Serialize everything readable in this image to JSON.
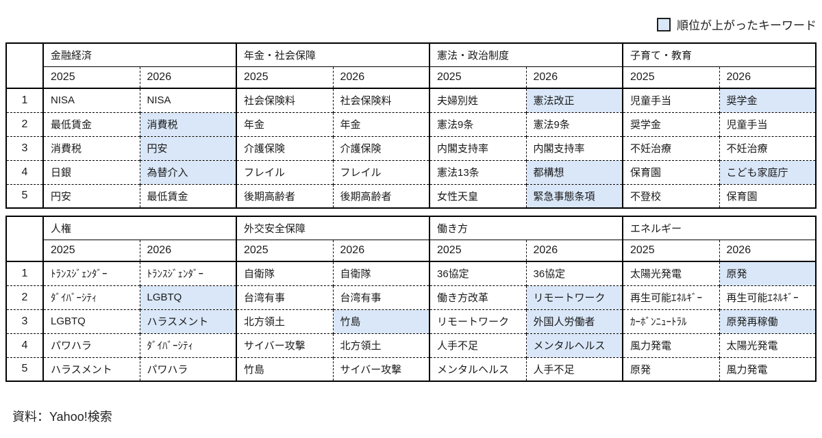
{
  "legend": {
    "label": "順位が上がったキーワード"
  },
  "colors": {
    "highlight": "#d9e7f8",
    "border": "#000000",
    "text": "#1a1a1a"
  },
  "source": "資料：Yahoo!検索",
  "chart_data": {
    "type": "table",
    "ranks": [
      "1",
      "2",
      "3",
      "4",
      "5"
    ],
    "years": [
      "2025",
      "2026"
    ],
    "highlight_meaning": "順位が上がったキーワード",
    "tables": [
      {
        "groups": [
          {
            "category": "金融経済",
            "columns": [
              {
                "year": "2025",
                "cells": [
                  {
                    "text": "NISA",
                    "up": false
                  },
                  {
                    "text": "最低賃金",
                    "up": false
                  },
                  {
                    "text": "消費税",
                    "up": false
                  },
                  {
                    "text": "日銀",
                    "up": false
                  },
                  {
                    "text": "円安",
                    "up": false
                  }
                ]
              },
              {
                "year": "2026",
                "cells": [
                  {
                    "text": "NISA",
                    "up": false
                  },
                  {
                    "text": "消費税",
                    "up": true
                  },
                  {
                    "text": "円安",
                    "up": true
                  },
                  {
                    "text": "為替介入",
                    "up": true
                  },
                  {
                    "text": "最低賃金",
                    "up": false
                  }
                ]
              }
            ]
          },
          {
            "category": "年金・社会保障",
            "columns": [
              {
                "year": "2025",
                "cells": [
                  {
                    "text": "社会保険料",
                    "up": false
                  },
                  {
                    "text": "年金",
                    "up": false
                  },
                  {
                    "text": "介護保険",
                    "up": false
                  },
                  {
                    "text": "フレイル",
                    "up": false
                  },
                  {
                    "text": "後期高齢者",
                    "up": false
                  }
                ]
              },
              {
                "year": "2026",
                "cells": [
                  {
                    "text": "社会保険料",
                    "up": false
                  },
                  {
                    "text": "年金",
                    "up": false
                  },
                  {
                    "text": "介護保険",
                    "up": false
                  },
                  {
                    "text": "フレイル",
                    "up": false
                  },
                  {
                    "text": "後期高齢者",
                    "up": false
                  }
                ]
              }
            ]
          },
          {
            "category": "憲法・政治制度",
            "columns": [
              {
                "year": "2025",
                "cells": [
                  {
                    "text": "夫婦別姓",
                    "up": false
                  },
                  {
                    "text": "憲法9条",
                    "up": false
                  },
                  {
                    "text": "内閣支持率",
                    "up": false
                  },
                  {
                    "text": "憲法13条",
                    "up": false
                  },
                  {
                    "text": "女性天皇",
                    "up": false
                  }
                ]
              },
              {
                "year": "2026",
                "cells": [
                  {
                    "text": "憲法改正",
                    "up": true
                  },
                  {
                    "text": "憲法9条",
                    "up": false
                  },
                  {
                    "text": "内閣支持率",
                    "up": false
                  },
                  {
                    "text": "都構想",
                    "up": true
                  },
                  {
                    "text": "緊急事態条項",
                    "up": true
                  }
                ]
              }
            ]
          },
          {
            "category": "子育て・教育",
            "columns": [
              {
                "year": "2025",
                "cells": [
                  {
                    "text": "児童手当",
                    "up": false
                  },
                  {
                    "text": "奨学金",
                    "up": false
                  },
                  {
                    "text": "不妊治療",
                    "up": false
                  },
                  {
                    "text": "保育園",
                    "up": false
                  },
                  {
                    "text": "不登校",
                    "up": false
                  }
                ]
              },
              {
                "year": "2026",
                "cells": [
                  {
                    "text": "奨学金",
                    "up": true
                  },
                  {
                    "text": "児童手当",
                    "up": false
                  },
                  {
                    "text": "不妊治療",
                    "up": false
                  },
                  {
                    "text": "こども家庭庁",
                    "up": true
                  },
                  {
                    "text": "保育園",
                    "up": false
                  }
                ]
              }
            ]
          }
        ]
      },
      {
        "groups": [
          {
            "category": "人権",
            "columns": [
              {
                "year": "2025",
                "cells": [
                  {
                    "text": "ﾄﾗﾝｽｼﾞｪﾝﾀﾞｰ",
                    "up": false
                  },
                  {
                    "text": "ﾀﾞｲﾊﾞｰｼﾃｨ",
                    "up": false
                  },
                  {
                    "text": "LGBTQ",
                    "up": false
                  },
                  {
                    "text": "パワハラ",
                    "up": false
                  },
                  {
                    "text": "ハラスメント",
                    "up": false
                  }
                ]
              },
              {
                "year": "2026",
                "cells": [
                  {
                    "text": "ﾄﾗﾝｽｼﾞｪﾝﾀﾞｰ",
                    "up": false
                  },
                  {
                    "text": "LGBTQ",
                    "up": true
                  },
                  {
                    "text": "ハラスメント",
                    "up": true
                  },
                  {
                    "text": "ﾀﾞｲﾊﾞｰｼﾃｨ",
                    "up": false
                  },
                  {
                    "text": "パワハラ",
                    "up": false
                  }
                ]
              }
            ]
          },
          {
            "category": "外交安全保障",
            "columns": [
              {
                "year": "2025",
                "cells": [
                  {
                    "text": "自衛隊",
                    "up": false
                  },
                  {
                    "text": "台湾有事",
                    "up": false
                  },
                  {
                    "text": "北方領土",
                    "up": false
                  },
                  {
                    "text": "サイバー攻撃",
                    "up": false
                  },
                  {
                    "text": "竹島",
                    "up": false
                  }
                ]
              },
              {
                "year": "2026",
                "cells": [
                  {
                    "text": "自衛隊",
                    "up": false
                  },
                  {
                    "text": "台湾有事",
                    "up": false
                  },
                  {
                    "text": "竹島",
                    "up": true
                  },
                  {
                    "text": "北方領土",
                    "up": false
                  },
                  {
                    "text": "サイバー攻撃",
                    "up": false
                  }
                ]
              }
            ]
          },
          {
            "category": "働き方",
            "columns": [
              {
                "year": "2025",
                "cells": [
                  {
                    "text": "36協定",
                    "up": false
                  },
                  {
                    "text": "働き方改革",
                    "up": false
                  },
                  {
                    "text": "リモートワーク",
                    "up": false
                  },
                  {
                    "text": "人手不足",
                    "up": false
                  },
                  {
                    "text": "メンタルヘルス",
                    "up": false
                  }
                ]
              },
              {
                "year": "2026",
                "cells": [
                  {
                    "text": "36協定",
                    "up": false
                  },
                  {
                    "text": "リモートワーク",
                    "up": true
                  },
                  {
                    "text": "外国人労働者",
                    "up": true
                  },
                  {
                    "text": "メンタルヘルス",
                    "up": true
                  },
                  {
                    "text": "人手不足",
                    "up": false
                  }
                ]
              }
            ]
          },
          {
            "category": "エネルギー",
            "columns": [
              {
                "year": "2025",
                "cells": [
                  {
                    "text": "太陽光発電",
                    "up": false
                  },
                  {
                    "text": "再生可能ｴﾈﾙｷﾞｰ",
                    "up": false
                  },
                  {
                    "text": "ｶｰﾎﾞﾝﾆｭｰﾄﾗﾙ",
                    "up": false
                  },
                  {
                    "text": "風力発電",
                    "up": false
                  },
                  {
                    "text": "原発",
                    "up": false
                  }
                ]
              },
              {
                "year": "2026",
                "cells": [
                  {
                    "text": "原発",
                    "up": true
                  },
                  {
                    "text": "再生可能ｴﾈﾙｷﾞｰ",
                    "up": false
                  },
                  {
                    "text": "原発再稼働",
                    "up": true
                  },
                  {
                    "text": "太陽光発電",
                    "up": false
                  },
                  {
                    "text": "風力発電",
                    "up": false
                  }
                ]
              }
            ]
          }
        ]
      }
    ]
  }
}
